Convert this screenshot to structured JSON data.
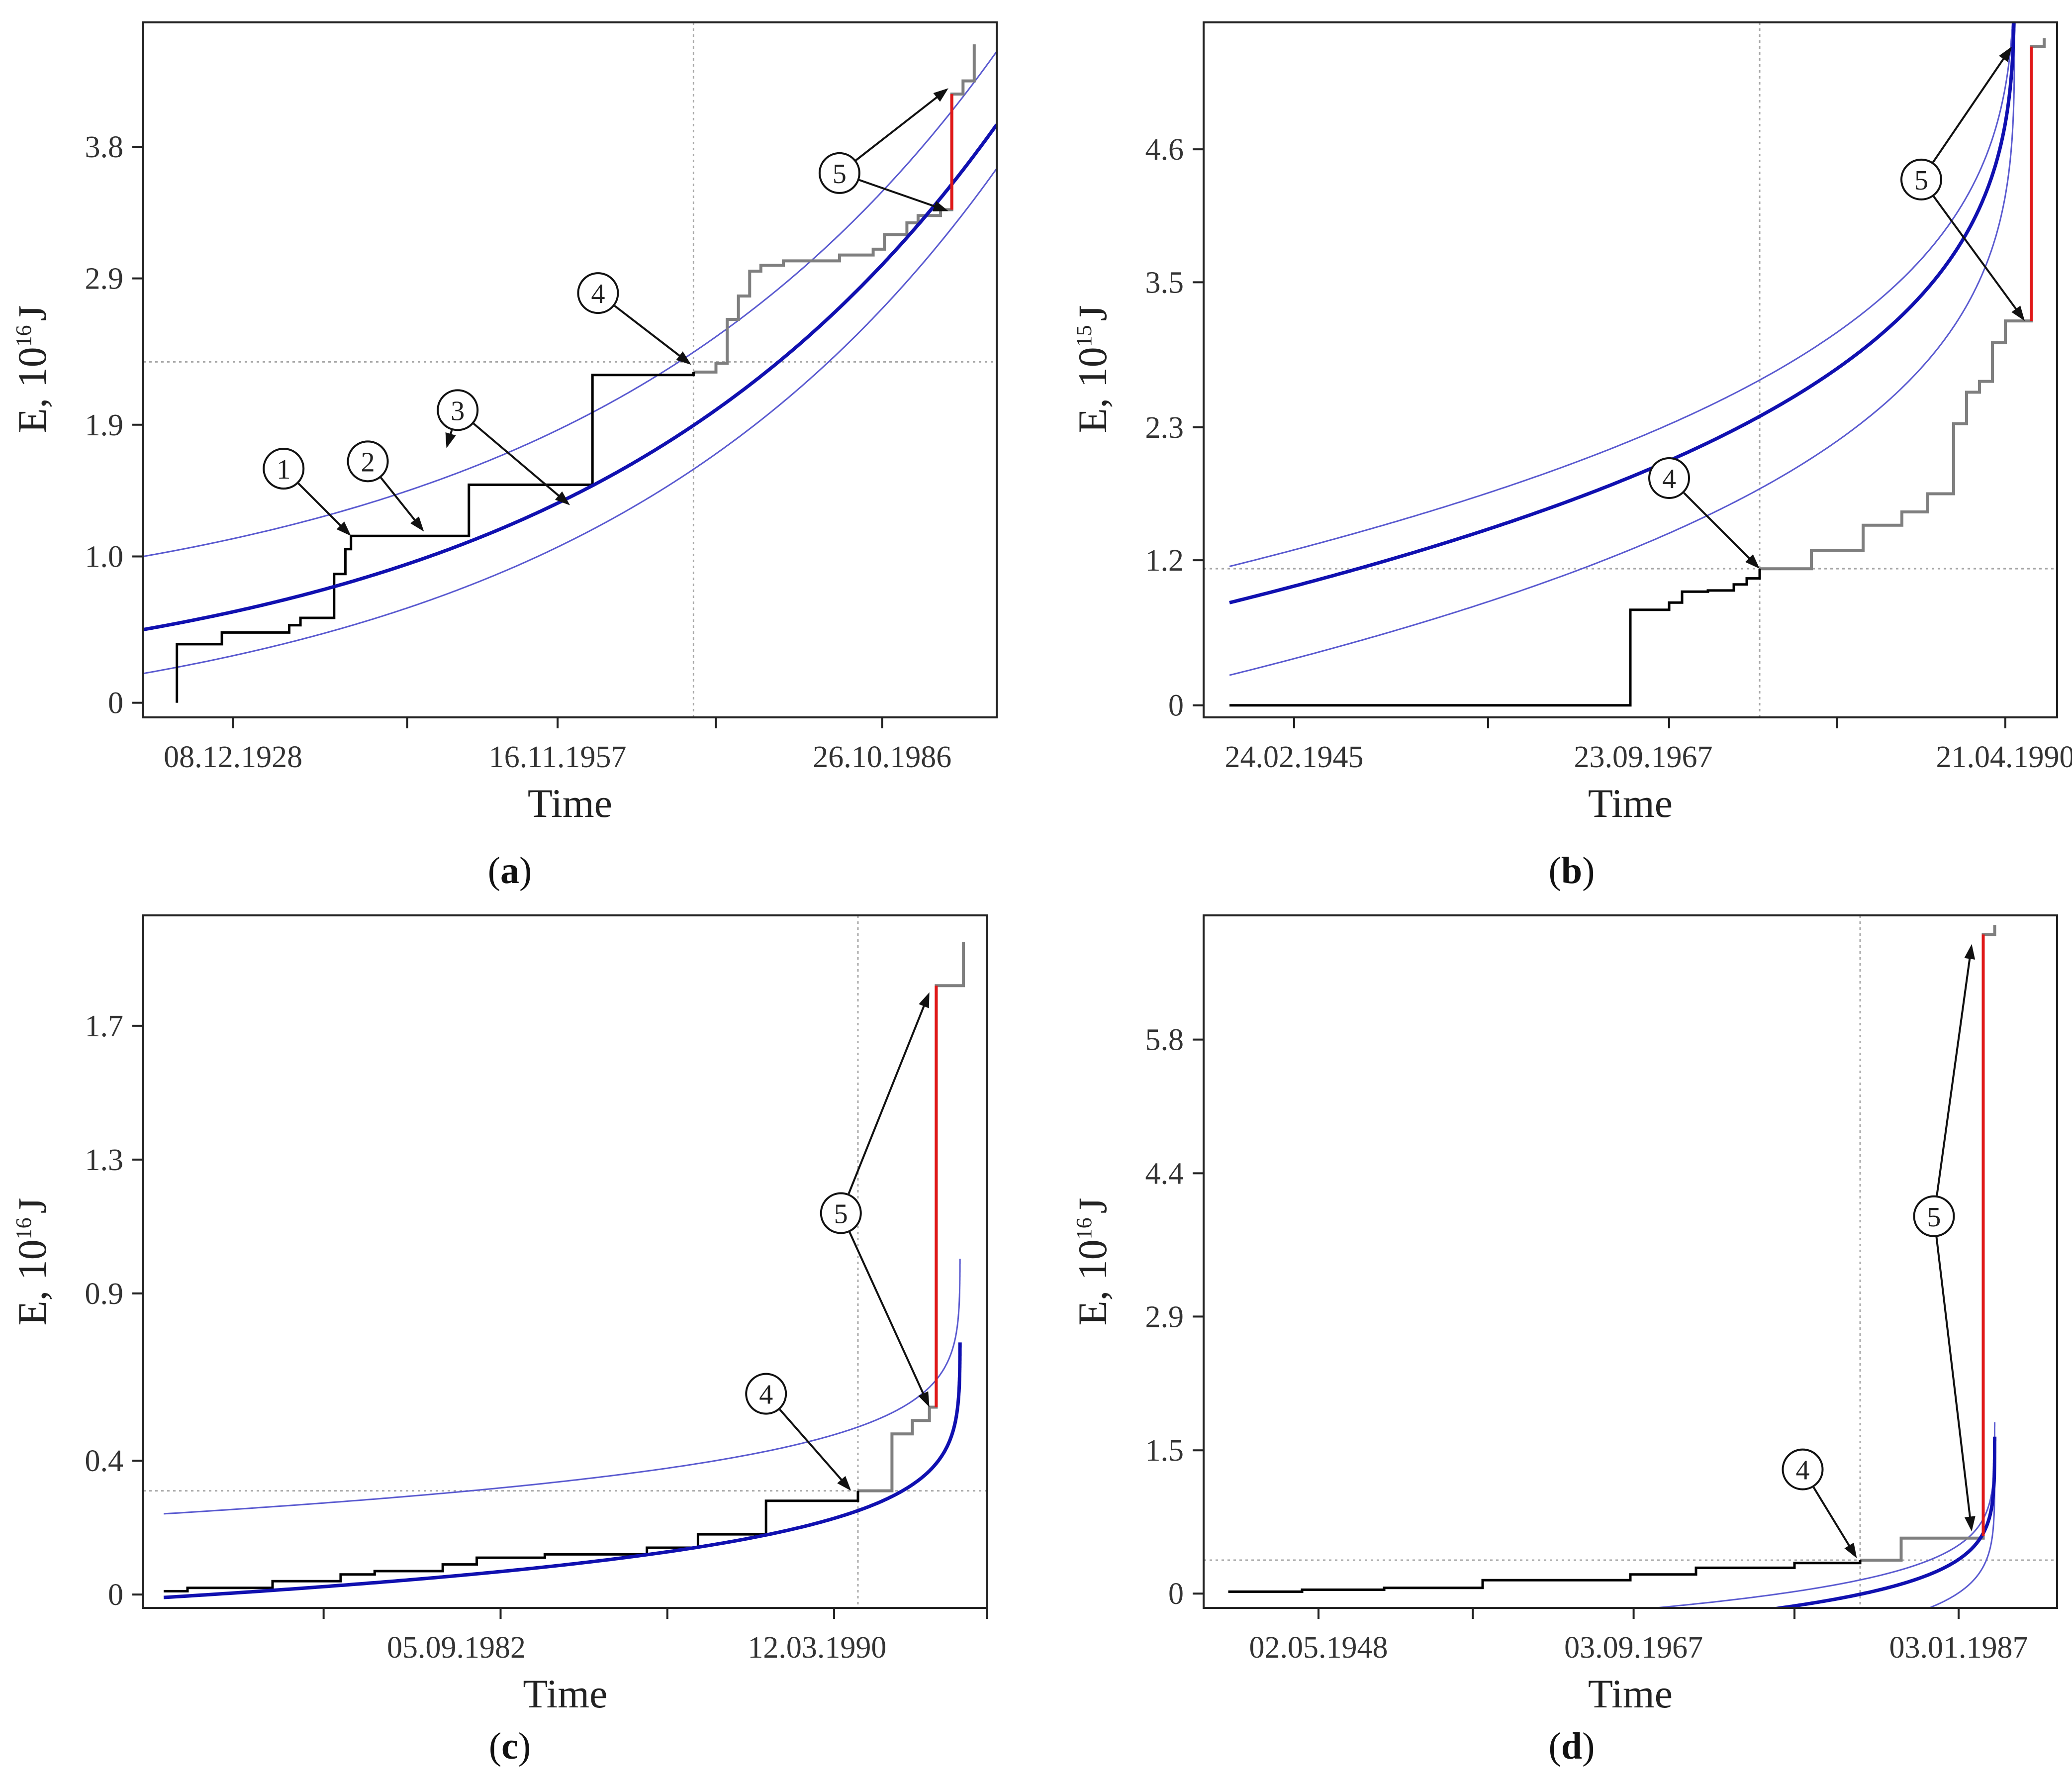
{
  "figure": {
    "colors": {
      "black_step": "#000000",
      "grey_step": "#7f7f7f",
      "fit_curve": "#1010b0",
      "band_curve": "#5a5ad0",
      "red_jump": "#e01818",
      "guide": "#a8a8a8",
      "frame": "#222222"
    }
  },
  "chart_data": [
    {
      "id": "a",
      "type": "line",
      "caption": "a",
      "xlabel": "Time",
      "ylabel_prefix": "E, 10",
      "ylabel_exp": "16",
      "ylabel_suffix": "J",
      "xlim": [
        1921,
        1997
      ],
      "ylim": [
        -0.1,
        4.65
      ],
      "yticks": [
        0,
        1.0,
        1.9,
        2.9,
        3.8
      ],
      "ytick_labels": [
        "0",
        "1.0",
        "1.9",
        "2.9",
        "3.8"
      ],
      "xticks_major": [
        1929,
        1944.5,
        1957.9,
        1972,
        1986.8
      ],
      "xtick_labels": [
        {
          "x": 1929,
          "label": "08.12.1928"
        },
        {
          "x": 1957.9,
          "label": "16.11.1957"
        },
        {
          "x": 1986.8,
          "label": "26.10.1986"
        }
      ],
      "guide_v": 1970,
      "guide_h": 2.33,
      "fit": {
        "kind": "exp",
        "a": 0.5,
        "k": 0.0272,
        "x0": 1921,
        "dl": 0.5,
        "du": -0.3
      },
      "black_step": [
        [
          1924,
          0
        ],
        [
          1924,
          0.4
        ],
        [
          1928,
          0.4
        ],
        [
          1928,
          0.48
        ],
        [
          1934,
          0.48
        ],
        [
          1934,
          0.53
        ],
        [
          1935,
          0.53
        ],
        [
          1935,
          0.58
        ],
        [
          1938,
          0.58
        ],
        [
          1938,
          0.88
        ],
        [
          1939,
          0.88
        ],
        [
          1939,
          1.05
        ],
        [
          1939.5,
          1.05
        ],
        [
          1939.5,
          1.14
        ],
        [
          1940,
          1.14
        ],
        [
          1940,
          1.14
        ],
        [
          1950,
          1.14
        ],
        [
          1950,
          1.49
        ],
        [
          1956,
          1.49
        ],
        [
          1956,
          1.49
        ],
        [
          1961,
          1.49
        ],
        [
          1961,
          2.24
        ],
        [
          1970,
          2.24
        ],
        [
          1970,
          2.26
        ]
      ],
      "grey_step": [
        [
          1970,
          2.26
        ],
        [
          1972,
          2.26
        ],
        [
          1972,
          2.32
        ],
        [
          1973,
          2.32
        ],
        [
          1973,
          2.62
        ],
        [
          1974,
          2.62
        ],
        [
          1974,
          2.78
        ],
        [
          1975,
          2.78
        ],
        [
          1975,
          2.95
        ],
        [
          1976,
          2.95
        ],
        [
          1976,
          2.99
        ],
        [
          1978,
          2.99
        ],
        [
          1978,
          3.02
        ],
        [
          1983,
          3.02
        ],
        [
          1983,
          3.06
        ],
        [
          1986,
          3.06
        ],
        [
          1986,
          3.1
        ],
        [
          1987,
          3.1
        ],
        [
          1987,
          3.2
        ],
        [
          1989,
          3.2
        ],
        [
          1989,
          3.28
        ],
        [
          1990,
          3.28
        ],
        [
          1990,
          3.33
        ],
        [
          1992,
          3.33
        ],
        [
          1992,
          3.37
        ],
        [
          1993,
          3.37
        ],
        [
          1993,
          4.16
        ],
        [
          1994,
          4.16
        ],
        [
          1994,
          4.25
        ],
        [
          1995,
          4.25
        ],
        [
          1995,
          4.5
        ]
      ],
      "red_jump": [
        [
          1993,
          3.37
        ],
        [
          1993,
          4.16
        ]
      ],
      "annotations": [
        {
          "label": "1",
          "circle": [
            1933.5,
            1.6
          ],
          "targets": [
            [
              1939.5,
              1.14
            ]
          ]
        },
        {
          "label": "2",
          "circle": [
            1941,
            1.65
          ],
          "targets": [
            [
              1946,
              1.17
            ]
          ]
        },
        {
          "label": "3",
          "circle": [
            1949,
            2.0
          ],
          "targets": [
            [
              1948,
              1.74
            ],
            [
              1959,
              1.35
            ]
          ]
        },
        {
          "label": "4",
          "circle": [
            1961.5,
            2.8
          ],
          "targets": [
            [
              1969.8,
              2.31
            ]
          ]
        },
        {
          "label": "5",
          "circle": [
            1983,
            3.62
          ],
          "targets": [
            [
              1992.7,
              4.2
            ],
            [
              1992.7,
              3.36
            ]
          ]
        }
      ]
    },
    {
      "id": "b",
      "type": "line",
      "caption": "b",
      "xlabel": "Time",
      "ylabel_prefix": "E, 10",
      "ylabel_exp": "15",
      "ylabel_suffix": "J",
      "xlim": [
        1934,
        2000
      ],
      "ylim": [
        -0.1,
        5.65
      ],
      "yticks": [
        0,
        1.2,
        2.3,
        3.5,
        4.6
      ],
      "ytick_labels": [
        "0",
        "1.2",
        "2.3",
        "3.5",
        "4.6"
      ],
      "xticks_major": [
        1941,
        1956,
        1970,
        1983,
        1996
      ],
      "xtick_labels": [
        {
          "x": 1941,
          "label": "24.02.1945"
        },
        {
          "x": 1968,
          "label": "23.09.1967"
        },
        {
          "x": 1996,
          "label": "21.04.1990"
        }
      ],
      "guide_v": 1977,
      "guide_h": 1.13,
      "fit": {
        "kind": "power",
        "tc": 1996.7,
        "A": 6.23,
        "B": 1.57,
        "m": 0.3,
        "x0": 1936,
        "dl": 0.3,
        "du": -0.6
      },
      "black_step": [
        [
          1936,
          0
        ],
        [
          1967,
          0
        ],
        [
          1967,
          0.79
        ],
        [
          1970,
          0.79
        ],
        [
          1970,
          0.85
        ],
        [
          1971,
          0.85
        ],
        [
          1971,
          0.94
        ],
        [
          1973,
          0.94
        ],
        [
          1973,
          0.95
        ],
        [
          1975,
          0.95
        ],
        [
          1975,
          1.0
        ],
        [
          1976,
          1.0
        ],
        [
          1976,
          1.05
        ],
        [
          1977,
          1.05
        ],
        [
          1977,
          1.13
        ]
      ],
      "grey_step": [
        [
          1977,
          1.13
        ],
        [
          1981,
          1.13
        ],
        [
          1981,
          1.28
        ],
        [
          1985,
          1.28
        ],
        [
          1985,
          1.49
        ],
        [
          1988,
          1.49
        ],
        [
          1988,
          1.6
        ],
        [
          1990,
          1.6
        ],
        [
          1990,
          1.75
        ],
        [
          1992,
          1.75
        ],
        [
          1992,
          2.33
        ],
        [
          1993,
          2.33
        ],
        [
          1993,
          2.59
        ],
        [
          1994,
          2.59
        ],
        [
          1994,
          2.68
        ],
        [
          1995,
          2.68
        ],
        [
          1995,
          3.0
        ],
        [
          1996,
          3.0
        ],
        [
          1996,
          3.18
        ],
        [
          1998,
          3.18
        ],
        [
          1998,
          5.45
        ],
        [
          1999,
          5.45
        ],
        [
          1999,
          5.52
        ]
      ],
      "red_jump": [
        [
          1998,
          3.18
        ],
        [
          1998,
          5.45
        ]
      ],
      "annotations": [
        {
          "label": "4",
          "circle": [
            1970,
            1.88
          ],
          "targets": [
            [
              1977,
              1.13
            ]
          ]
        },
        {
          "label": "5",
          "circle": [
            1989.5,
            4.35
          ],
          "targets": [
            [
              1996.5,
              5.45
            ],
            [
              1997.5,
              3.18
            ]
          ]
        }
      ]
    },
    {
      "id": "c",
      "type": "line",
      "caption": "c",
      "xlabel": "Time",
      "ylabel_prefix": "E, 10",
      "ylabel_exp": "16",
      "ylabel_suffix": "J",
      "xlim": [
        1972.2,
        1997
      ],
      "ylim": [
        -0.04,
        2.03
      ],
      "yticks": [
        0,
        0.4,
        0.9,
        1.3,
        1.7
      ],
      "ytick_labels": [
        "0",
        "0.4",
        "0.9",
        "1.3",
        "1.7"
      ],
      "xticks_major": [
        1977.5,
        1982.7,
        1987.6,
        1992.5,
        1997
      ],
      "xtick_labels": [
        {
          "x": 1981.4,
          "label": "05.09.1982"
        },
        {
          "x": 1992,
          "label": "12.03.1990"
        }
      ],
      "guide_v": 1993.2,
      "guide_h": 0.31,
      "fit": {
        "kind": "power",
        "tc": 1996.2,
        "A": 0.97,
        "B": 0.61,
        "m": 0.15,
        "x0": 1972.8,
        "dl": 0.25,
        "du": -0.8
      },
      "black_step": [
        [
          1972.8,
          0.01
        ],
        [
          1973.5,
          0.01
        ],
        [
          1973.5,
          0.02
        ],
        [
          1976,
          0.02
        ],
        [
          1976,
          0.04
        ],
        [
          1978,
          0.04
        ],
        [
          1978,
          0.06
        ],
        [
          1979,
          0.06
        ],
        [
          1979,
          0.07
        ],
        [
          1981,
          0.07
        ],
        [
          1981,
          0.09
        ],
        [
          1982,
          0.09
        ],
        [
          1982,
          0.11
        ],
        [
          1984,
          0.11
        ],
        [
          1984,
          0.12
        ],
        [
          1987,
          0.12
        ],
        [
          1987,
          0.14
        ],
        [
          1988.5,
          0.14
        ],
        [
          1988.5,
          0.18
        ],
        [
          1990.5,
          0.18
        ],
        [
          1990.5,
          0.28
        ],
        [
          1993.2,
          0.28
        ],
        [
          1993.2,
          0.31
        ]
      ],
      "grey_step": [
        [
          1993.2,
          0.31
        ],
        [
          1994.2,
          0.31
        ],
        [
          1994.2,
          0.48
        ],
        [
          1994.8,
          0.48
        ],
        [
          1994.8,
          0.52
        ],
        [
          1995.3,
          0.52
        ],
        [
          1995.3,
          0.56
        ],
        [
          1995.5,
          0.56
        ],
        [
          1995.5,
          1.82
        ],
        [
          1996.3,
          1.82
        ],
        [
          1996.3,
          1.95
        ]
      ],
      "red_jump": [
        [
          1995.5,
          0.56
        ],
        [
          1995.5,
          1.82
        ]
      ],
      "annotations": [
        {
          "label": "4",
          "circle": [
            1990.5,
            0.6
          ],
          "targets": [
            [
              1993,
              0.31
            ]
          ]
        },
        {
          "label": "5",
          "circle": [
            1992.7,
            1.14
          ],
          "targets": [
            [
              1995.3,
              1.8
            ],
            [
              1995.3,
              0.56
            ]
          ]
        }
      ]
    },
    {
      "id": "d",
      "type": "line",
      "caption": "d",
      "xlabel": "Time",
      "ylabel_prefix": "E, 10",
      "ylabel_exp": "16",
      "ylabel_suffix": "J",
      "xlim": [
        1941,
        1993
      ],
      "ylim": [
        -0.15,
        7.1
      ],
      "yticks": [
        0,
        1.5,
        2.9,
        4.4,
        5.8
      ],
      "ytick_labels": [
        "0",
        "1.5",
        "2.9",
        "4.4",
        "5.8"
      ],
      "xticks_major": [
        1948,
        1957.4,
        1967.2,
        1977,
        1987
      ],
      "xtick_labels": [
        {
          "x": 1948,
          "label": "02.05.1948"
        },
        {
          "x": 1967.2,
          "label": "03.09.1967"
        },
        {
          "x": 1987,
          "label": "03.01.1987"
        }
      ],
      "guide_v": 1981,
      "guide_h": 0.35,
      "fit": {
        "kind": "power",
        "tc": 1989.2,
        "A": 2.49,
        "B": 1.94,
        "m": 0.12,
        "x0": 1942.5,
        "dl": 0.15,
        "du": -0.35
      },
      "black_step": [
        [
          1942.5,
          0.02
        ],
        [
          1947,
          0.02
        ],
        [
          1947,
          0.04
        ],
        [
          1952,
          0.04
        ],
        [
          1952,
          0.06
        ],
        [
          1958,
          0.06
        ],
        [
          1958,
          0.14
        ],
        [
          1967,
          0.14
        ],
        [
          1967,
          0.2
        ],
        [
          1971,
          0.2
        ],
        [
          1971,
          0.27
        ],
        [
          1977,
          0.27
        ],
        [
          1977,
          0.32
        ],
        [
          1981,
          0.32
        ],
        [
          1981,
          0.35
        ]
      ],
      "grey_step": [
        [
          1981,
          0.35
        ],
        [
          1983.5,
          0.35
        ],
        [
          1983.5,
          0.58
        ],
        [
          1988.5,
          0.58
        ],
        [
          1988.5,
          6.9
        ],
        [
          1989.2,
          6.9
        ],
        [
          1989.2,
          7.0
        ]
      ],
      "red_jump": [
        [
          1988.5,
          0.6
        ],
        [
          1988.5,
          6.9
        ]
      ],
      "annotations": [
        {
          "label": "4",
          "circle": [
            1977.5,
            1.3
          ],
          "targets": [
            [
              1980.8,
              0.37
            ]
          ]
        },
        {
          "label": "5",
          "circle": [
            1985.5,
            3.95
          ],
          "targets": [
            [
              1987.8,
              6.8
            ],
            [
              1987.8,
              0.65
            ]
          ]
        }
      ]
    }
  ]
}
